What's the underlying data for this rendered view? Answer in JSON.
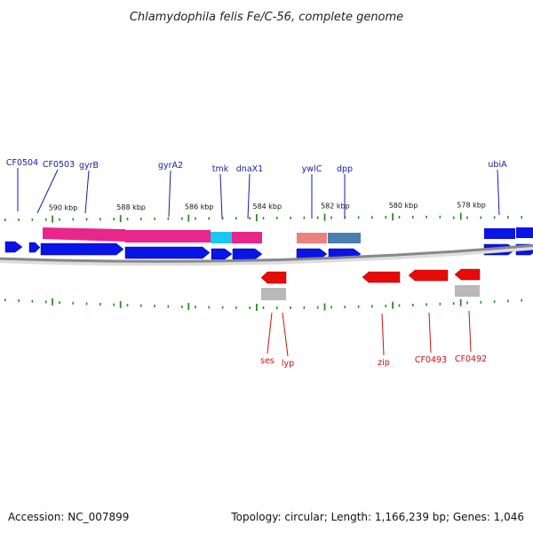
{
  "title": "Chlamydophila felis Fe/C-56, complete genome",
  "footer": {
    "accession": "Accession: NC_007899",
    "summary": "Topology: circular; Length: 1,166,239 bp; Genes: 1,046"
  },
  "scale": {
    "unit": "kbp",
    "ticks": [
      {
        "value": 590,
        "label": "590 kbp"
      },
      {
        "value": 588,
        "label": "588 kbp"
      },
      {
        "value": 586,
        "label": "586 kbp"
      },
      {
        "value": 584,
        "label": "584 kbp"
      },
      {
        "value": 582,
        "label": "582 kbp"
      },
      {
        "value": 580,
        "label": "580 kbp"
      },
      {
        "value": 578,
        "label": "578 kbp"
      }
    ]
  },
  "colors": {
    "forward_gene": "#0a14e6",
    "reverse_gene": "#e60a0a",
    "forward_label": "#1a1aa8",
    "reverse_label": "#cc1010",
    "backbone": "#888888",
    "tick": "#2e8b2e",
    "cog_magenta": "#e8268c",
    "cog_cyan": "#19c8f0",
    "cog_salmon": "#ee8080",
    "cog_steel": "#4a7fb0",
    "cog_grey": "#b8b8b8"
  },
  "forward_labels": [
    "CF0504",
    "CF0503",
    "gyrB",
    "gyrA2",
    "tmk",
    "dnaX1",
    "ywlC",
    "dpp",
    "ubiA"
  ],
  "reverse_labels": [
    "ses",
    "lyp",
    "zip",
    "CF0493",
    "CF0492"
  ]
}
